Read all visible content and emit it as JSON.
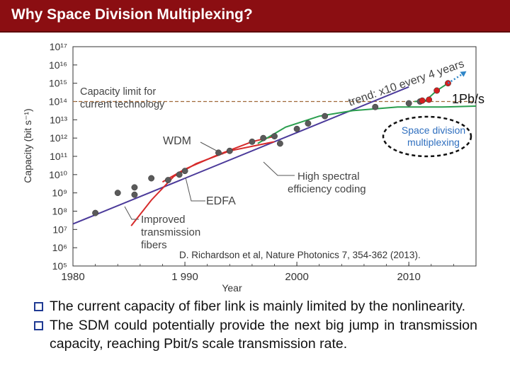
{
  "slide": {
    "title": "Why Space Division Multiplexing?",
    "bullets": [
      "The current capacity of fiber link is mainly limited by the nonlinearity.",
      "The SDM could potentially provide the next big jump in transmission capacity, reaching Pbit/s scale transmission rate."
    ]
  },
  "chart_data": {
    "type": "scatter",
    "title": "",
    "xlabel": "Year",
    "ylabel": "Capacity (bit s⁻¹)",
    "xlim": [
      1980,
      2016
    ],
    "ylim_log10": [
      5,
      17
    ],
    "log_scale_y": true,
    "x_ticks": [
      1980,
      1990,
      2000,
      2010
    ],
    "x_tick_labels": [
      "1980",
      "1 990",
      "2000",
      "2010"
    ],
    "y_ticks_log10": [
      5,
      6,
      7,
      8,
      9,
      10,
      11,
      12,
      13,
      14,
      15,
      16,
      17
    ],
    "y_tick_labels": [
      "10⁵",
      "10⁶",
      "10⁷",
      "10⁸",
      "10⁹",
      "10¹⁰",
      "10¹¹",
      "10¹²",
      "10¹³",
      "10¹⁴",
      "10¹⁵",
      "10¹⁶",
      "10¹⁷"
    ],
    "series": [
      {
        "kind": "points",
        "color": "#5a5a5a",
        "points": [
          [
            1982,
            7.9
          ],
          [
            1984,
            9.0
          ],
          [
            1985.5,
            9.3
          ],
          [
            1985.5,
            8.9
          ],
          [
            1987,
            9.8
          ],
          [
            1988.5,
            9.7
          ],
          [
            1989.5,
            10.0
          ],
          [
            1990,
            10.2
          ],
          [
            1993,
            11.2
          ],
          [
            1994,
            11.3
          ],
          [
            1996,
            11.8
          ],
          [
            1997,
            12.0
          ],
          [
            1998,
            12.1
          ],
          [
            1998.5,
            11.7
          ],
          [
            2000,
            12.5
          ],
          [
            2001,
            12.8
          ],
          [
            2002.5,
            13.2
          ],
          [
            2007,
            13.7
          ],
          [
            2010,
            13.9
          ],
          [
            2011,
            14.0
          ]
        ]
      },
      {
        "kind": "points",
        "color": "#d42020",
        "points": [
          [
            2011.2,
            14.05
          ],
          [
            2011.8,
            14.1
          ],
          [
            2012.5,
            14.6
          ],
          [
            2013.5,
            15.0
          ]
        ]
      },
      {
        "kind": "line",
        "name": "trend",
        "color": "#4b3a9a",
        "points": [
          [
            1980,
            7.3
          ],
          [
            1990,
            9.8
          ],
          [
            2000,
            12.3
          ],
          [
            2010,
            14.8
          ]
        ]
      },
      {
        "kind": "line",
        "name": "EDFA",
        "color": "#d62b2b",
        "points": [
          [
            1985.2,
            7.2
          ],
          [
            1987,
            8.6
          ],
          [
            1989,
            9.9
          ],
          [
            1991,
            10.6
          ],
          [
            1994,
            11.3
          ],
          [
            1998,
            11.8
          ]
        ]
      },
      {
        "kind": "line",
        "name": "WDM",
        "color": "#d62b2b",
        "points": [
          [
            1988,
            9.6
          ],
          [
            1990,
            10.3
          ],
          [
            1993,
            11.1
          ],
          [
            1996,
            11.8
          ],
          [
            1998,
            12.1
          ]
        ]
      },
      {
        "kind": "line",
        "name": "High spectral efficiency coding",
        "color": "#2a9e4e",
        "points": [
          [
            1996.5,
            11.7
          ],
          [
            1999,
            12.6
          ],
          [
            2002,
            13.2
          ],
          [
            2005,
            13.5
          ],
          [
            2009,
            13.7
          ],
          [
            2013,
            13.7
          ],
          [
            2016,
            13.75
          ]
        ]
      },
      {
        "kind": "line",
        "name": "Space division multiplexing",
        "color": "#2a9e4e",
        "points": [
          [
            2010.5,
            14.0
          ],
          [
            2011.5,
            14.05
          ],
          [
            2012.5,
            14.6
          ],
          [
            2013.5,
            15.0
          ]
        ]
      }
    ],
    "reference_line": {
      "y_log10": 14,
      "color": "#a0693a",
      "label": "Capacity limit for current technology"
    },
    "annotations": {
      "capacity_limit_label": "Capacity limit for current technology",
      "trend": "trend: x10 every 4 years",
      "wdm": "WDM",
      "edfa": "EDFA",
      "hsec": "High spectral efficiency coding",
      "improved": "Improved transmission fibers",
      "sdm": "Space division multiplexing",
      "pbs": "1Pb/s",
      "citation": "D. Richardson et al, Nature Photonics 7, 354-362 (2013)."
    },
    "colors": {
      "axis": "#333333",
      "trend": "#4b3a9a",
      "red": "#d62b2b",
      "green": "#2a9e4e",
      "limit": "#a0693a",
      "sdm_text": "#2f6fbf",
      "arrow": "#2f86c8"
    }
  }
}
